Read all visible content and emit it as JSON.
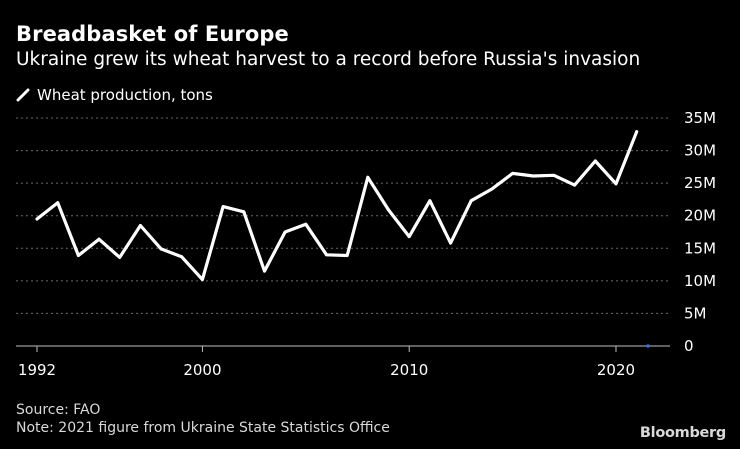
{
  "chart_data": {
    "type": "line",
    "title": "Breadbasket of Europe",
    "subtitle": "Ukraine grew its wheat harvest to a record before Russia's invasion",
    "series": [
      {
        "name": "Wheat production, tons",
        "color": "#ffffff",
        "x": [
          1992,
          1993,
          1994,
          1995,
          1996,
          1997,
          1998,
          1999,
          2000,
          2001,
          2002,
          2003,
          2004,
          2005,
          2006,
          2007,
          2008,
          2009,
          2010,
          2011,
          2012,
          2013,
          2014,
          2015,
          2016,
          2017,
          2018,
          2019,
          2020,
          2021
        ],
        "values": [
          19500000,
          22000000,
          13900000,
          16400000,
          13600000,
          18500000,
          14900000,
          13700000,
          10200000,
          21400000,
          20600000,
          11500000,
          17500000,
          18700000,
          14000000,
          13900000,
          25900000,
          20900000,
          16800000,
          22300000,
          15800000,
          22300000,
          24100000,
          26500000,
          26100000,
          26200000,
          24700000,
          28400000,
          24900000,
          32900000
        ]
      }
    ],
    "xlim": [
      1992,
      2021.5
    ],
    "xticks": [
      {
        "value": 1992,
        "label": "1992"
      },
      {
        "value": 2000,
        "label": "2000"
      },
      {
        "value": 2010,
        "label": "2010"
      },
      {
        "value": 2020,
        "label": "2020"
      }
    ],
    "ylim": [
      0,
      35000000
    ],
    "yticks": [
      {
        "value": 0,
        "label": "0"
      },
      {
        "value": 5000000,
        "label": "5M"
      },
      {
        "value": 10000000,
        "label": "10M"
      },
      {
        "value": 15000000,
        "label": "15M"
      },
      {
        "value": 20000000,
        "label": "20M"
      },
      {
        "value": 25000000,
        "label": "25M"
      },
      {
        "value": 30000000,
        "label": "30M"
      },
      {
        "value": 35000000,
        "label": "35M"
      }
    ],
    "grid": true,
    "legend_position": "top-left"
  },
  "footer": {
    "source": "Source: FAO",
    "note": "Note: 2021 figure from Ukraine State Statistics Office",
    "brand": "Bloomberg"
  },
  "colors": {
    "background": "#000000",
    "line": "#ffffff",
    "grid": "#6b6b6b",
    "text": "#ffffff",
    "footer_text": "#d9d9d9"
  }
}
